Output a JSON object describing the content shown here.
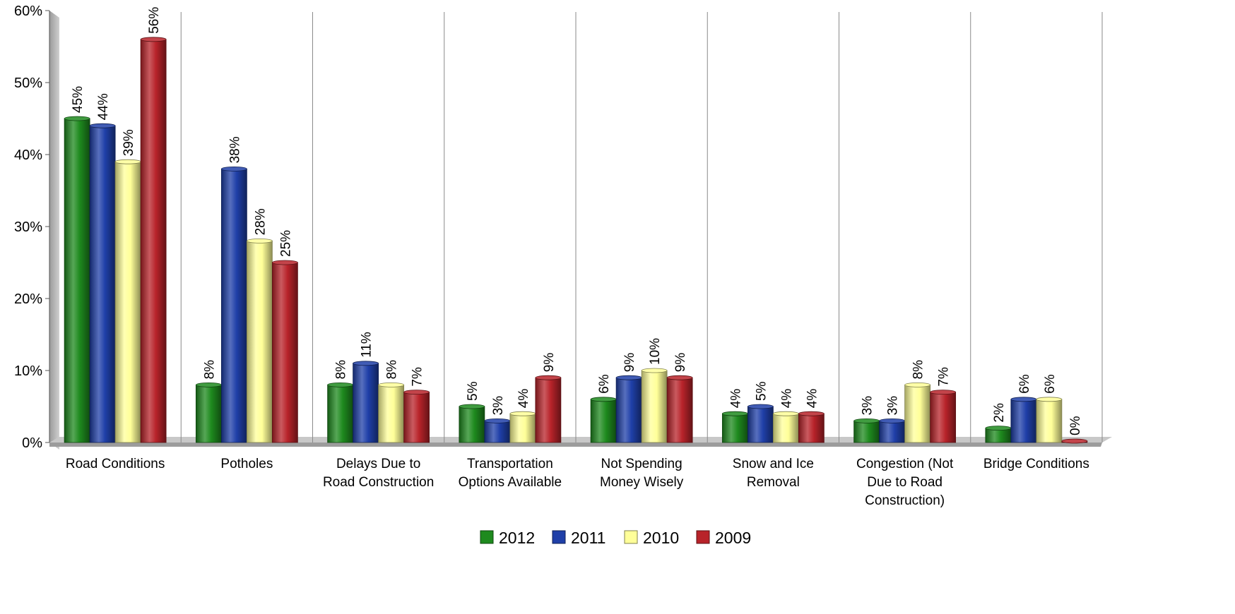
{
  "chart_data": {
    "type": "bar",
    "title": "",
    "xlabel": "",
    "ylabel": "",
    "ylim": [
      0,
      60
    ],
    "yticks": [
      0,
      10,
      20,
      30,
      40,
      50,
      60
    ],
    "ytick_labels": [
      "0%",
      "10%",
      "20%",
      "30%",
      "40%",
      "50%",
      "60%"
    ],
    "value_suffix": "%",
    "grid": "vertical category separators",
    "legend_position": "bottom",
    "categories": [
      [
        "Road Conditions"
      ],
      [
        "Potholes"
      ],
      [
        "Delays Due to",
        "Road Construction"
      ],
      [
        "Transportation",
        "Options Available"
      ],
      [
        "Not Spending",
        "Money Wisely"
      ],
      [
        "Snow and Ice",
        "Removal"
      ],
      [
        "Congestion (Not",
        "Due to Road",
        "Construction)"
      ],
      [
        "Bridge Conditions"
      ]
    ],
    "series": [
      {
        "name": "2012",
        "color": "#1e8a1e",
        "values": [
          45,
          8,
          8,
          5,
          6,
          4,
          3,
          2
        ]
      },
      {
        "name": "2011",
        "color": "#1f3fa8",
        "values": [
          44,
          38,
          11,
          3,
          9,
          5,
          3,
          6
        ]
      },
      {
        "name": "2010",
        "color": "#ffff99",
        "values": [
          39,
          28,
          8,
          4,
          10,
          4,
          8,
          6
        ]
      },
      {
        "name": "2009",
        "color": "#b8232a",
        "values": [
          56,
          25,
          7,
          9,
          9,
          4,
          7,
          0
        ]
      }
    ]
  }
}
